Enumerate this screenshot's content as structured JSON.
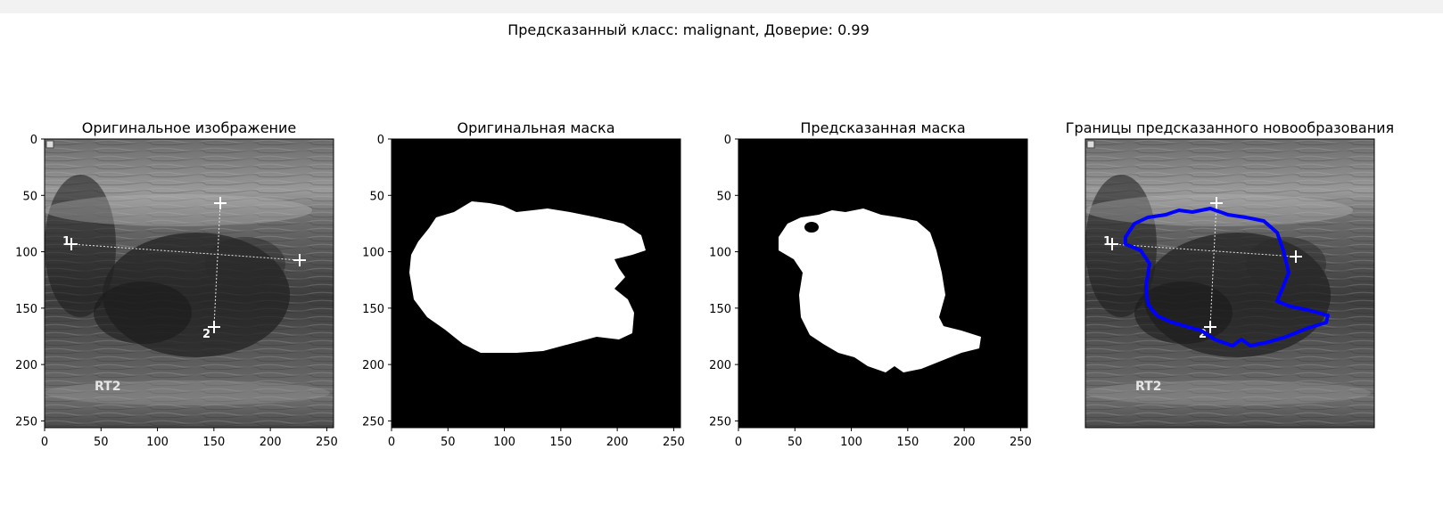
{
  "suptitle": "Предсказанный класс: malignant, Доверие: 0.99",
  "panels": [
    {
      "title": "Оригинальное изображение",
      "kind": "ultrasound",
      "show_axes": true
    },
    {
      "title": "Оригинальная маска",
      "kind": "mask_true",
      "show_axes": true
    },
    {
      "title": "Предсказанная маска",
      "kind": "mask_pred",
      "show_axes": true
    },
    {
      "title": "Границы предсказанного новообразования",
      "kind": "ultrasound_contour",
      "show_axes": false
    }
  ],
  "ultrasound": {
    "marker_labels": [
      "1",
      "2"
    ],
    "probe_label": "RT2"
  },
  "axis": {
    "ticks": [
      0,
      50,
      100,
      150,
      200,
      250
    ],
    "xlim": [
      0,
      256
    ],
    "ylim": [
      256,
      0
    ]
  },
  "colors": {
    "contour": "#0000ff",
    "mask_fg": "#ffffff",
    "mask_bg": "#000000",
    "topbar": "#f2f2f2"
  }
}
